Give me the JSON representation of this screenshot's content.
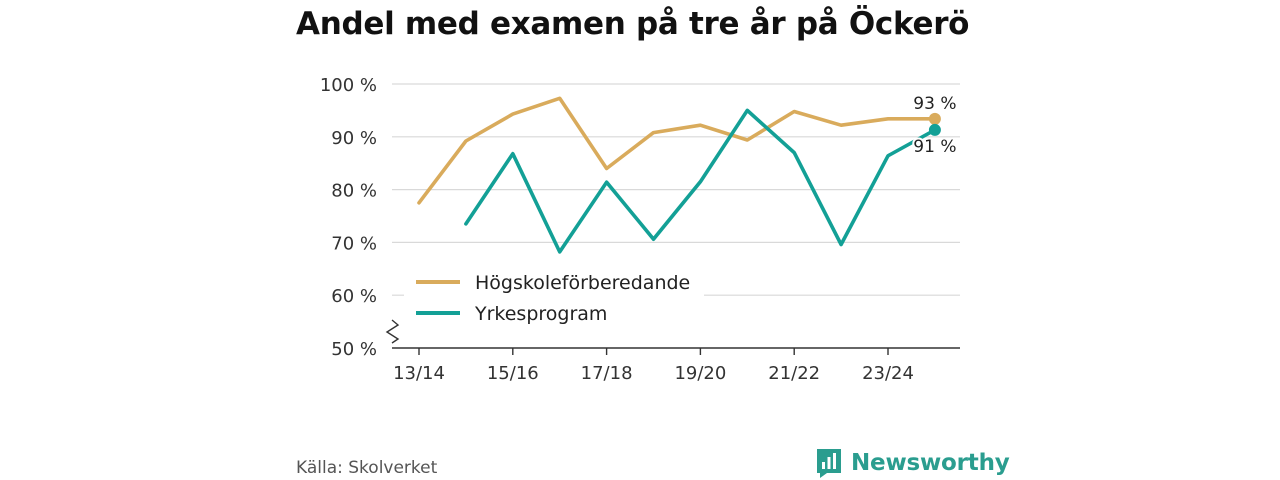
{
  "title": "Andel med examen på tre år på Öckerö",
  "source": "Källa: Skolverket",
  "brand": "Newsworthy",
  "colors": {
    "series1": "#d9ab5c",
    "series2": "#13a096",
    "grid": "#d9d9d9",
    "axis": "#333333"
  },
  "chart_data": {
    "type": "line",
    "x": [
      "13/14",
      "14/15",
      "15/16",
      "16/17",
      "17/18",
      "18/19",
      "19/20",
      "20/21",
      "21/22",
      "22/23",
      "23/24",
      "24/25"
    ],
    "x_tick_labels": [
      "13/14",
      "15/16",
      "17/18",
      "19/20",
      "21/22",
      "23/24"
    ],
    "y_ticks": [
      50,
      60,
      70,
      80,
      90,
      100
    ],
    "y_tick_labels": [
      "50 %",
      "60 %",
      "70 %",
      "80 %",
      "90 %",
      "100 %"
    ],
    "ylim": [
      50,
      100
    ],
    "y_axis_break": true,
    "grid": true,
    "legend_position": "bottom-left",
    "series": [
      {
        "name": "Högskoleförberedande",
        "values": [
          77.5,
          89.2,
          94.3,
          97.3,
          84.0,
          90.8,
          92.2,
          89.4,
          94.8,
          92.2,
          93.4,
          93.4
        ],
        "end_label": "93 %"
      },
      {
        "name": "Yrkesprogram",
        "values": [
          null,
          73.5,
          86.8,
          68.2,
          81.4,
          70.6,
          81.5,
          95.0,
          87.0,
          69.6,
          86.4,
          91.3
        ],
        "end_label": "91 %"
      }
    ]
  }
}
